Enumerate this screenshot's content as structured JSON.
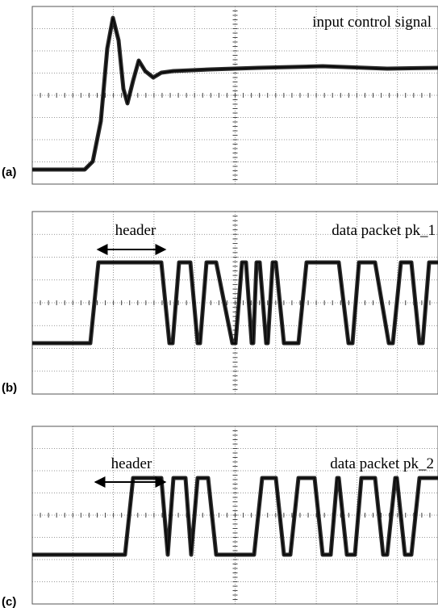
{
  "panels": [
    {
      "label": "(a)",
      "title": "input control signal"
    },
    {
      "label": "(b)",
      "title": "data packet pk_1",
      "annotation": "header"
    },
    {
      "label": "(c)",
      "title": "data packet pk_2",
      "annotation": "header"
    }
  ]
}
